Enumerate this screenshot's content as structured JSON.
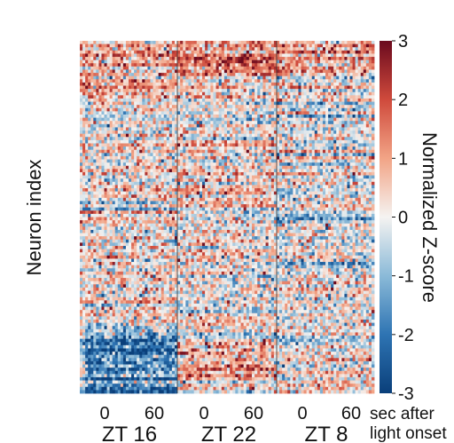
{
  "chart_data": {
    "type": "heatmap",
    "ylabel": "Neuron index",
    "colorbar": {
      "label": "Normalized Z-score",
      "min": -3,
      "max": 3,
      "ticks": [
        3,
        2,
        1,
        0,
        -1,
        -2,
        -3
      ],
      "colors": [
        "#0a3f7a",
        "#2e74b3",
        "#8bbad8",
        "#f5f3f1",
        "#f2a486",
        "#cf4a3c",
        "#6b0a1e"
      ]
    },
    "panels": [
      {
        "label": "ZT 16",
        "x_ticks": [
          "0",
          "60"
        ],
        "x": [
          0,
          60
        ],
        "pattern": "suppressed-bottom",
        "rows": [
          {
            "rows": "top 20%",
            "mean_z": 0.6
          },
          {
            "rows": "middle",
            "mean_z": 0.2
          },
          {
            "rows": "bottom 20%",
            "mean_z": -1.8
          }
        ]
      },
      {
        "label": "ZT 22",
        "x_ticks": [
          "0",
          "60"
        ],
        "x": [
          0,
          60
        ],
        "pattern": "excited-top",
        "rows": [
          {
            "rows": "top 10%",
            "mean_z": 1.2
          },
          {
            "rows": "middle",
            "mean_z": 0.1
          },
          {
            "rows": "bottom 15%",
            "mean_z": 0.6
          }
        ]
      },
      {
        "label": "ZT 8",
        "x_ticks": [
          "0",
          "60"
        ],
        "x": [
          0,
          60
        ],
        "pattern": "mixed",
        "rows": [
          {
            "rows": "top 10%",
            "mean_z": 0.9
          },
          {
            "rows": "middle",
            "mean_z": -0.1
          },
          {
            "rows": "bottom 15%",
            "mean_z": 0.2
          }
        ]
      }
    ],
    "x_unit_label": [
      "sec after",
      "light onset"
    ],
    "grid": false
  }
}
